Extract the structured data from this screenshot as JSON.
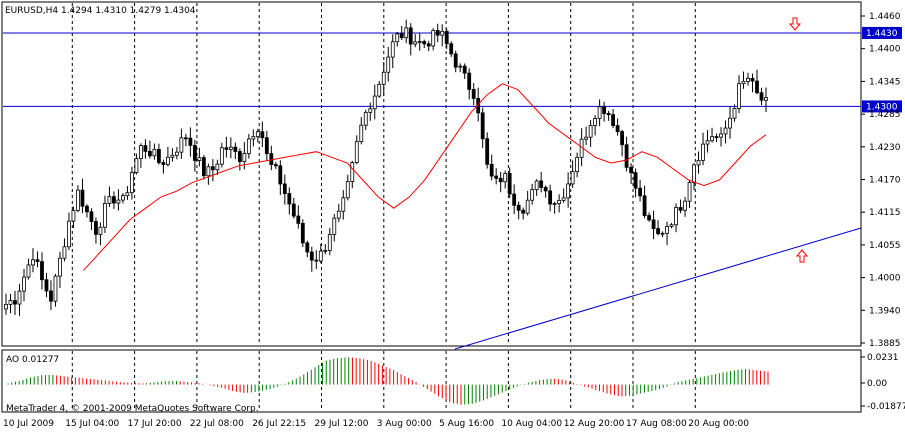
{
  "window": {
    "symbol_line": "EURUSD,H4  1.4294 1.4310 1.4279 1.4304",
    "indicator_label": "AO 0.01277",
    "copyright": "MetaTrader 4, © 2001-2009 MetaQuotes Software Corp."
  },
  "colors": {
    "background": "#ffffff",
    "grid": "#000000",
    "bull_candle": "#000000",
    "bear_candle": "#000000",
    "moving_average": "#ff0000",
    "level_lines": "#0000cc",
    "trendline": "#0000cc",
    "ao_up": "#008000",
    "ao_down": "#ff0000",
    "marker": "#ff0000"
  },
  "icons": {
    "sell_marker": "down-arrow-outline-icon",
    "buy_marker": "up-arrow-outline-icon"
  },
  "chart_data": {
    "type": "candlestick",
    "price_axis": [
      "1.4460",
      "1.4400",
      "1.4345",
      "1.4285",
      "1.4230",
      "1.4170",
      "1.4115",
      "1.4055",
      "1.4000",
      "1.3940",
      "1.3885"
    ],
    "price_range": [
      1.3885,
      1.446
    ],
    "level_labels": [
      "1.4430",
      "1.4300"
    ],
    "levels": [
      1.443,
      1.43
    ],
    "ao_axis": [
      "0.0231",
      "0.00",
      "-0.01877"
    ],
    "ao_range": [
      -0.01877,
      0.0231
    ],
    "time_axis": [
      "10 Jul 2009",
      "15 Jul 04:00",
      "17 Jul 20:00",
      "22 Jul 08:00",
      "26 Jul 22:15",
      "29 Jul 12:00",
      "3 Aug 00:00",
      "5 Aug 16:00",
      "10 Aug 04:00",
      "12 Aug 20:00",
      "17 Aug 08:00",
      "20 Aug 00:00"
    ],
    "close_path": [
      1.395,
      1.396,
      1.4,
      1.404,
      1.399,
      1.396,
      1.403,
      1.41,
      1.415,
      1.411,
      1.408,
      1.412,
      1.414,
      1.413,
      1.419,
      1.423,
      1.422,
      1.42,
      1.421,
      1.423,
      1.425,
      1.421,
      1.418,
      1.419,
      1.423,
      1.422,
      1.421,
      1.425,
      1.427,
      1.42,
      1.418,
      1.414,
      1.41,
      1.405,
      1.403,
      1.404,
      1.409,
      1.411,
      1.417,
      1.425,
      1.43,
      1.433,
      1.438,
      1.442,
      1.443,
      1.442,
      1.441,
      1.442,
      1.443,
      1.44,
      1.437,
      1.434,
      1.432,
      1.42,
      1.416,
      1.418,
      1.414,
      1.412,
      1.414,
      1.417,
      1.414,
      1.413,
      1.416,
      1.421,
      1.425,
      1.429,
      1.43,
      1.428,
      1.424,
      1.418,
      1.414,
      1.409,
      1.407,
      1.409,
      1.411,
      1.414,
      1.42,
      1.423,
      1.425,
      1.424,
      1.428,
      1.433,
      1.435,
      1.432,
      1.4304
    ],
    "ma_path": [
      null,
      null,
      null,
      null,
      null,
      1.401,
      1.404,
      1.407,
      1.41,
      1.412,
      1.414,
      1.415,
      1.4165,
      1.4175,
      1.4185,
      1.4195,
      1.42,
      1.4205,
      1.421,
      1.4215,
      1.422,
      1.421,
      1.42,
      1.417,
      1.414,
      1.412,
      1.414,
      1.417,
      1.421,
      1.425,
      1.429,
      1.432,
      1.434,
      1.433,
      1.43,
      1.427,
      1.425,
      1.423,
      1.421,
      1.42,
      1.4205,
      1.422,
      1.421,
      1.419,
      1.417,
      1.416,
      1.417,
      1.42,
      1.423,
      1.425
    ],
    "ao_values": [
      0.001,
      0.003,
      0.006,
      0.008,
      0.008,
      0.007,
      0.006,
      0.005,
      0.004,
      0.003,
      0.002,
      0.0015,
      0.001,
      0.002,
      0.003,
      0.003,
      0.002,
      0.001,
      -0.001,
      -0.003,
      -0.006,
      -0.007,
      -0.006,
      -0.004,
      -0.001,
      0.003,
      0.008,
      0.014,
      0.02,
      0.022,
      0.023,
      0.022,
      0.02,
      0.016,
      0.012,
      0.007,
      0.002,
      -0.004,
      -0.01,
      -0.015,
      -0.017,
      -0.016,
      -0.013,
      -0.009,
      -0.005,
      -0.001,
      0.002,
      0.004,
      0.005,
      0.004,
      0.001,
      -0.002,
      -0.005,
      -0.008,
      -0.01,
      -0.009,
      -0.007,
      -0.005,
      -0.002,
      0.002,
      0.004,
      0.006,
      0.008,
      0.01,
      0.012,
      0.013,
      0.012,
      0.011
    ]
  }
}
